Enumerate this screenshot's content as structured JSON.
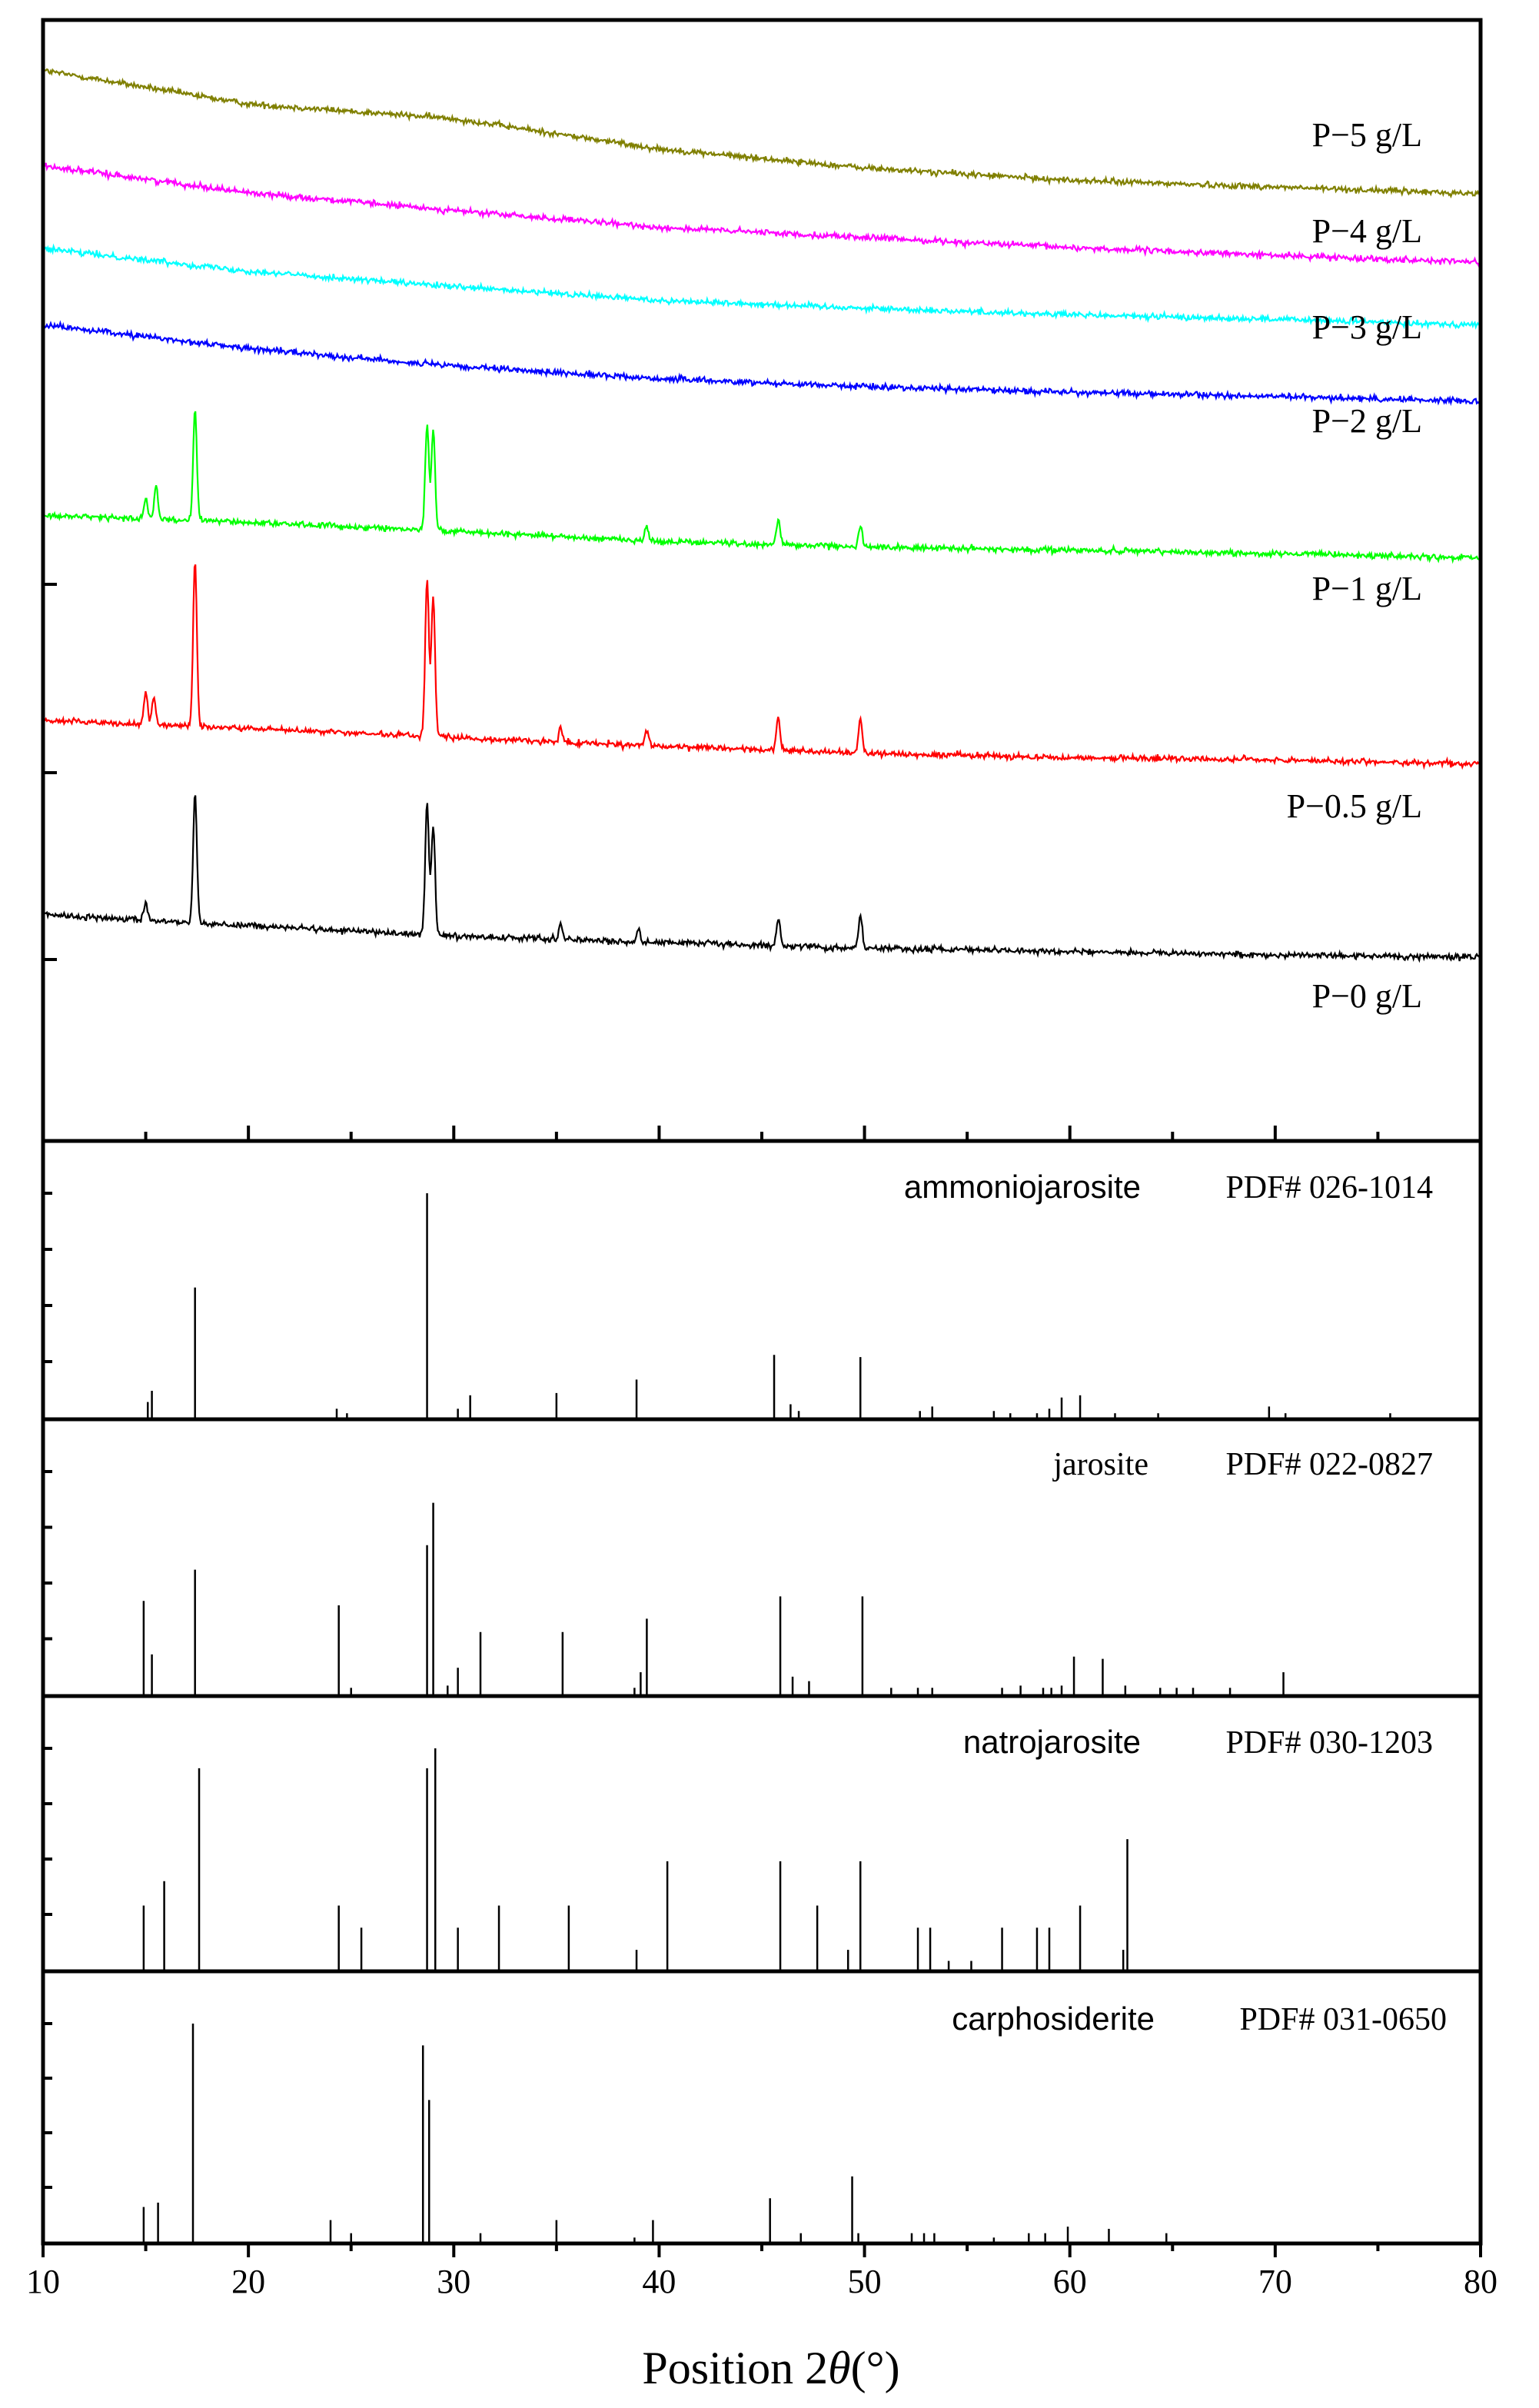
{
  "chart_data": [
    {
      "type": "line",
      "xlabel": "Position 2θ(°)",
      "xlabel_parts": {
        "prefix": "Position 2",
        "symbol": "θ",
        "suffix": "(°)"
      },
      "xlim": [
        10,
        80
      ],
      "x_ticks": [
        "10",
        "20",
        "30",
        "40",
        "50",
        "60",
        "70",
        "80"
      ],
      "ylabel": "",
      "y_tick_labels": "none",
      "series": [
        {
          "name": "P−5 g/L",
          "color": "#808000",
          "baseline": [
            [
              10,
              0.955
            ],
            [
              20,
              0.925
            ],
            [
              30,
              0.912
            ],
            [
              40,
              0.885
            ],
            [
              50,
              0.868
            ],
            [
              60,
              0.857
            ],
            [
              70,
              0.851
            ],
            [
              80,
              0.845
            ]
          ],
          "peaks": []
        },
        {
          "name": "P−4 g/L",
          "color": "#ff00ff",
          "baseline": [
            [
              10,
              0.87
            ],
            [
              20,
              0.846
            ],
            [
              30,
              0.83
            ],
            [
              40,
              0.815
            ],
            [
              50,
              0.806
            ],
            [
              60,
              0.797
            ],
            [
              70,
              0.79
            ],
            [
              80,
              0.784
            ]
          ],
          "peaks": []
        },
        {
          "name": "P−3 g/L",
          "color": "#00ffff",
          "baseline": [
            [
              10,
              0.796
            ],
            [
              20,
              0.776
            ],
            [
              30,
              0.762
            ],
            [
              40,
              0.75
            ],
            [
              50,
              0.743
            ],
            [
              60,
              0.737
            ],
            [
              70,
              0.733
            ],
            [
              80,
              0.728
            ]
          ],
          "peaks": []
        },
        {
          "name": "P−2 g/L",
          "color": "#0000ff",
          "baseline": [
            [
              10,
              0.728
            ],
            [
              20,
              0.707
            ],
            [
              30,
              0.691
            ],
            [
              40,
              0.68
            ],
            [
              50,
              0.673
            ],
            [
              60,
              0.668
            ],
            [
              70,
              0.664
            ],
            [
              80,
              0.66
            ]
          ],
          "peaks": []
        },
        {
          "name": "P−1 g/L",
          "color": "#00ff00",
          "baseline": [
            [
              10,
              0.558
            ],
            [
              20,
              0.552
            ],
            [
              30,
              0.544
            ],
            [
              40,
              0.535
            ],
            [
              50,
              0.53
            ],
            [
              60,
              0.527
            ],
            [
              70,
              0.524
            ],
            [
              80,
              0.52
            ]
          ],
          "peaks": [
            [
              15.0,
              0.018
            ],
            [
              15.5,
              0.03
            ],
            [
              17.4,
              0.098
            ],
            [
              28.7,
              0.094
            ],
            [
              29.0,
              0.09
            ],
            [
              39.4,
              0.012
            ],
            [
              45.8,
              0.022
            ],
            [
              49.8,
              0.019
            ]
          ]
        },
        {
          "name": "P−0.5 g/L",
          "color": "#ff0000",
          "baseline": [
            [
              10,
              0.375
            ],
            [
              20,
              0.368
            ],
            [
              30,
              0.36
            ],
            [
              40,
              0.352
            ],
            [
              50,
              0.346
            ],
            [
              60,
              0.342
            ],
            [
              70,
              0.34
            ],
            [
              80,
              0.336
            ]
          ],
          "peaks": [
            [
              15.0,
              0.028
            ],
            [
              15.4,
              0.025
            ],
            [
              17.4,
              0.148
            ],
            [
              28.7,
              0.14
            ],
            [
              29.0,
              0.126
            ],
            [
              35.2,
              0.014
            ],
            [
              39.4,
              0.014
            ],
            [
              45.8,
              0.03
            ],
            [
              49.8,
              0.031
            ]
          ]
        },
        {
          "name": "P−0 g/L",
          "color": "#000000",
          "baseline": [
            [
              10,
              0.202
            ],
            [
              20,
              0.192
            ],
            [
              30,
              0.183
            ],
            [
              40,
              0.177
            ],
            [
              50,
              0.172
            ],
            [
              60,
              0.169
            ],
            [
              70,
              0.166
            ],
            [
              80,
              0.164
            ]
          ],
          "peaks": [
            [
              15.0,
              0.015
            ],
            [
              17.4,
              0.115
            ],
            [
              28.7,
              0.117
            ],
            [
              29.0,
              0.098
            ],
            [
              35.2,
              0.013
            ],
            [
              39.0,
              0.012
            ],
            [
              45.8,
              0.024
            ],
            [
              49.8,
              0.03
            ]
          ]
        }
      ]
    },
    {
      "type": "bar",
      "title": "ammoniojarosite",
      "pdf": "PDF# 026-1014",
      "xlim": [
        10,
        80
      ],
      "ylim": [
        0,
        100
      ],
      "peaks": [
        [
          15.1,
          7
        ],
        [
          15.3,
          12
        ],
        [
          17.4,
          58
        ],
        [
          24.3,
          4
        ],
        [
          24.8,
          2
        ],
        [
          28.7,
          100
        ],
        [
          30.2,
          4
        ],
        [
          30.8,
          10
        ],
        [
          35.0,
          11
        ],
        [
          38.9,
          17
        ],
        [
          45.6,
          28
        ],
        [
          46.4,
          6
        ],
        [
          46.8,
          3
        ],
        [
          49.8,
          27
        ],
        [
          52.7,
          3
        ],
        [
          53.3,
          5
        ],
        [
          56.3,
          3
        ],
        [
          57.1,
          2
        ],
        [
          58.4,
          2
        ],
        [
          59.0,
          4
        ],
        [
          59.6,
          9
        ],
        [
          60.5,
          10
        ],
        [
          62.2,
          2
        ],
        [
          64.3,
          2
        ],
        [
          69.7,
          5
        ],
        [
          70.5,
          2
        ],
        [
          75.6,
          2
        ]
      ]
    },
    {
      "type": "bar",
      "title": "jarosite",
      "pdf": "PDF# 022-0827",
      "xlim": [
        10,
        80
      ],
      "ylim": [
        0,
        100
      ],
      "peaks": [
        [
          14.9,
          42
        ],
        [
          15.3,
          18
        ],
        [
          17.4,
          56
        ],
        [
          24.4,
          40
        ],
        [
          25.0,
          3
        ],
        [
          28.7,
          67
        ],
        [
          29.0,
          86
        ],
        [
          29.7,
          4
        ],
        [
          30.2,
          12
        ],
        [
          31.3,
          28
        ],
        [
          35.3,
          28
        ],
        [
          38.8,
          3
        ],
        [
          39.1,
          10
        ],
        [
          39.4,
          34
        ],
        [
          45.9,
          44
        ],
        [
          46.5,
          8
        ],
        [
          47.3,
          6
        ],
        [
          49.9,
          44
        ],
        [
          51.3,
          3
        ],
        [
          52.6,
          3
        ],
        [
          53.3,
          3
        ],
        [
          56.7,
          3
        ],
        [
          57.6,
          4
        ],
        [
          58.7,
          3
        ],
        [
          59.1,
          3
        ],
        [
          59.6,
          4
        ],
        [
          60.2,
          17
        ],
        [
          61.6,
          16
        ],
        [
          62.7,
          4
        ],
        [
          64.4,
          3
        ],
        [
          65.2,
          3
        ],
        [
          66.0,
          3
        ],
        [
          67.8,
          3
        ],
        [
          70.4,
          10
        ]
      ]
    },
    {
      "type": "bar",
      "title": "natrojarosite",
      "pdf": "PDF# 030-1203",
      "xlim": [
        10,
        80
      ],
      "ylim": [
        0,
        100
      ],
      "peaks": [
        [
          14.9,
          29
        ],
        [
          15.9,
          40
        ],
        [
          17.6,
          91
        ],
        [
          24.4,
          29
        ],
        [
          25.5,
          19
        ],
        [
          28.7,
          91
        ],
        [
          29.1,
          100
        ],
        [
          30.2,
          19
        ],
        [
          32.2,
          29
        ],
        [
          35.6,
          29
        ],
        [
          38.9,
          9
        ],
        [
          40.4,
          49
        ],
        [
          45.9,
          49
        ],
        [
          47.7,
          29
        ],
        [
          49.2,
          9
        ],
        [
          49.8,
          49
        ],
        [
          52.6,
          19
        ],
        [
          53.2,
          19
        ],
        [
          54.1,
          4
        ],
        [
          55.2,
          4
        ],
        [
          56.7,
          19
        ],
        [
          58.4,
          19
        ],
        [
          59.0,
          19
        ],
        [
          60.5,
          29
        ],
        [
          62.6,
          9
        ],
        [
          62.8,
          59
        ]
      ]
    },
    {
      "type": "bar",
      "title": "carphosiderite",
      "pdf": "PDF# 031-0650",
      "xlim": [
        10,
        80
      ],
      "ylim": [
        0,
        100
      ],
      "peaks": [
        [
          14.9,
          16
        ],
        [
          15.6,
          18
        ],
        [
          17.3,
          100
        ],
        [
          24.0,
          10
        ],
        [
          25.0,
          4
        ],
        [
          28.5,
          90
        ],
        [
          28.8,
          65
        ],
        [
          31.3,
          4
        ],
        [
          35.0,
          10
        ],
        [
          38.8,
          2
        ],
        [
          39.7,
          10
        ],
        [
          45.4,
          20
        ],
        [
          46.9,
          4
        ],
        [
          49.4,
          30
        ],
        [
          49.7,
          4
        ],
        [
          52.3,
          4
        ],
        [
          52.9,
          4
        ],
        [
          53.4,
          4
        ],
        [
          56.3,
          2
        ],
        [
          58.0,
          4
        ],
        [
          58.8,
          4
        ],
        [
          59.9,
          7
        ],
        [
          61.9,
          6
        ],
        [
          64.7,
          4
        ]
      ]
    }
  ]
}
